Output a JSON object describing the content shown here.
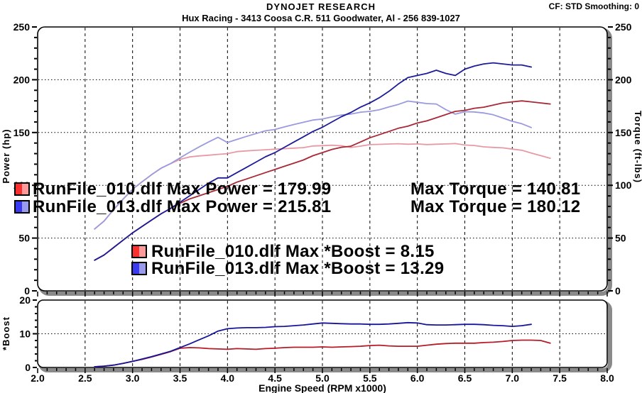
{
  "header": {
    "title": "DYNOJET RESEARCH",
    "subtitle": "Hux Racing - 3413 Coosa C.R. 511 Goodwater, Al - 256 839-1027",
    "status_right": "CF: STD  Smoothing: 0"
  },
  "main_chart": {
    "left_axis_label": "Power (hp)",
    "right_axis_label": "Torque (ft-lbs)",
    "y_tick_labels": [
      "0",
      "50",
      "100",
      "150",
      "200",
      "250"
    ],
    "legend_rows": [
      {
        "swatch_left": "#f83030",
        "swatch_right": "#fb9a9a",
        "left_text": "RunFile_010.dlf Max Power = 179.99",
        "right_text": "Max Torque = 140.81"
      },
      {
        "swatch_left": "#3a3af0",
        "swatch_right": "#9a9aec",
        "left_text": "RunFile_013.dlf Max Power = 215.81",
        "right_text": "Max Torque = 180.12"
      }
    ]
  },
  "boost_chart": {
    "axis_label": "*Boost",
    "y_tick_labels": [
      "0",
      "10",
      "20"
    ],
    "legend_rows": [
      {
        "swatch_left": "#f83030",
        "swatch_right": "#fb9a9a",
        "text": "RunFile_010.dlf Max *Boost = 8.15"
      },
      {
        "swatch_left": "#3a3af0",
        "swatch_right": "#9a9aec",
        "text": "RunFile_013.dlf Max *Boost = 13.29"
      }
    ]
  },
  "x_axis": {
    "label": "Engine Speed (RPM x1000)",
    "ticks": [
      "2.0",
      "2.5",
      "3.0",
      "3.5",
      "4.0",
      "4.5",
      "5.0",
      "5.5",
      "6.0",
      "6.5",
      "7.0",
      "7.5",
      "8.0"
    ]
  },
  "chart_data": [
    {
      "type": "line",
      "title": "Power and Torque vs Engine Speed",
      "xlabel": "Engine Speed (RPM x1000)",
      "ylabel_left": "Power (hp)",
      "ylabel_right": "Torque (ft-lbs)",
      "xlim": [
        2.0,
        8.0
      ],
      "ylim": [
        0,
        250
      ],
      "grid": true,
      "series": [
        {
          "id": "torque-010",
          "name": "RunFile_010.dlf Torque (ft-lbs)",
          "role": "torque",
          "color": "#e89aa4",
          "max": 140.81,
          "x": [
            2.6,
            2.7,
            2.8,
            2.9,
            3.0,
            3.1,
            3.2,
            3.3,
            3.4,
            3.5,
            3.6,
            3.7,
            3.8,
            3.9,
            4.0,
            4.1,
            4.2,
            4.3,
            4.4,
            4.5,
            4.6,
            4.7,
            4.8,
            4.9,
            5.0,
            5.1,
            5.2,
            5.3,
            5.4,
            5.5,
            5.6,
            5.7,
            5.8,
            5.9,
            6.0,
            6.1,
            6.2,
            6.3,
            6.4,
            6.5,
            6.6,
            6.7,
            6.8,
            6.9,
            7.0,
            7.1,
            7.2,
            7.3,
            7.4
          ],
          "y": [
            58.6,
            66.1,
            76.9,
            86.9,
            96.3,
            103.3,
            110.0,
            116.2,
            120.5,
            124.5,
            126.9,
            127.8,
            128.5,
            129.3,
            130.0,
            131.9,
            132.6,
            133.1,
            133.7,
            134.2,
            134.7,
            135.2,
            135.7,
            137.2,
            137.6,
            138.0,
            137.4,
            135.8,
            137.1,
            138.5,
            138.8,
            139.1,
            139.4,
            138.9,
            139.2,
            138.6,
            138.9,
            139.2,
            139.5,
            138.2,
            137.7,
            136.4,
            135.9,
            135.5,
            134.3,
            133.2,
            130.6,
            128.1,
            125.6
          ]
        },
        {
          "id": "torque-013",
          "name": "RunFile_013.dlf Torque (ft-lbs)",
          "role": "torque",
          "color": "#9a9adf",
          "max": 180.12,
          "x": [
            2.6,
            2.7,
            2.8,
            2.9,
            3.0,
            3.1,
            3.2,
            3.3,
            3.4,
            3.5,
            3.6,
            3.7,
            3.8,
            3.9,
            4.0,
            4.1,
            4.2,
            4.3,
            4.4,
            4.5,
            4.6,
            4.7,
            4.8,
            4.9,
            5.0,
            5.1,
            5.2,
            5.3,
            5.4,
            5.5,
            5.6,
            5.7,
            5.8,
            5.9,
            6.0,
            6.1,
            6.2,
            6.3,
            6.4,
            6.5,
            6.6,
            6.7,
            6.8,
            6.9,
            7.0,
            7.1,
            7.2
          ],
          "y": [
            58.6,
            66.1,
            76.9,
            86.9,
            96.3,
            103.3,
            110.0,
            116.2,
            120.5,
            126.0,
            131.3,
            136.3,
            141.0,
            145.4,
            140.5,
            143.5,
            146.3,
            149.0,
            151.6,
            152.9,
            155.3,
            157.6,
            159.7,
            161.8,
            162.8,
            164.8,
            166.6,
            167.5,
            169.2,
            170.0,
            171.6,
            174.2,
            176.6,
            179.8,
            178.6,
            177.4,
            177.0,
            171.7,
            167.4,
            169.7,
            169.5,
            168.5,
            166.8,
            163.7,
            160.6,
            158.3,
            154.7
          ]
        },
        {
          "id": "power-010",
          "name": "RunFile_010.dlf Power (hp)",
          "role": "power",
          "color": "#a82836",
          "max": 179.99,
          "x": [
            2.6,
            2.7,
            2.8,
            2.9,
            3.0,
            3.1,
            3.2,
            3.3,
            3.4,
            3.5,
            3.6,
            3.7,
            3.8,
            3.9,
            4.0,
            4.1,
            4.2,
            4.3,
            4.4,
            4.5,
            4.6,
            4.7,
            4.8,
            4.9,
            5.0,
            5.1,
            5.2,
            5.3,
            5.4,
            5.5,
            5.6,
            5.7,
            5.8,
            5.9,
            6.0,
            6.1,
            6.2,
            6.3,
            6.4,
            6.5,
            6.6,
            6.7,
            6.8,
            6.9,
            7.0,
            7.1,
            7.2,
            7.3,
            7.4
          ],
          "y": [
            29,
            34,
            41,
            48,
            55,
            61,
            67,
            73,
            78,
            83,
            87,
            90,
            93,
            96,
            99,
            103,
            106,
            109,
            112,
            115,
            118,
            121,
            124,
            128,
            131,
            134,
            136,
            137,
            141,
            145,
            148,
            151,
            154,
            156,
            159,
            161,
            164,
            167,
            170,
            171,
            173,
            174,
            176,
            178,
            179,
            180,
            179,
            178,
            177
          ]
        },
        {
          "id": "power-013",
          "name": "RunFile_013.dlf Power (hp)",
          "role": "power",
          "color": "#1c1c99",
          "max": 215.81,
          "x": [
            2.6,
            2.7,
            2.8,
            2.9,
            3.0,
            3.1,
            3.2,
            3.3,
            3.4,
            3.5,
            3.6,
            3.7,
            3.8,
            3.9,
            4.0,
            4.1,
            4.2,
            4.3,
            4.4,
            4.5,
            4.6,
            4.7,
            4.8,
            4.9,
            5.0,
            5.1,
            5.2,
            5.3,
            5.4,
            5.5,
            5.6,
            5.7,
            5.8,
            5.9,
            6.0,
            6.1,
            6.2,
            6.3,
            6.4,
            6.5,
            6.6,
            6.7,
            6.8,
            6.9,
            7.0,
            7.1,
            7.2
          ],
          "y": [
            29,
            34,
            41,
            48,
            55,
            61,
            67,
            73,
            78,
            84,
            90,
            96,
            102,
            107,
            107,
            112,
            117,
            122,
            127,
            131,
            136,
            141,
            146,
            151,
            155,
            160,
            165,
            169,
            174,
            178,
            183,
            189,
            196,
            202,
            204,
            206,
            209,
            206,
            204,
            210,
            213,
            215,
            216,
            215,
            214,
            214,
            212
          ]
        }
      ]
    },
    {
      "type": "line",
      "title": "Boost vs Engine Speed",
      "xlabel": "Engine Speed (RPM x1000)",
      "ylabel": "*Boost",
      "xlim": [
        2.0,
        8.0
      ],
      "ylim": [
        0,
        20
      ],
      "grid": true,
      "series": [
        {
          "id": "boost-010",
          "name": "RunFile_010.dlf *Boost",
          "role": "boost",
          "color": "#b51c28",
          "max": 8.15,
          "x": [
            2.6,
            2.7,
            2.8,
            2.9,
            3.0,
            3.1,
            3.2,
            3.3,
            3.4,
            3.5,
            3.6,
            3.7,
            3.8,
            3.9,
            4.0,
            4.1,
            4.2,
            4.3,
            4.4,
            4.5,
            4.6,
            4.7,
            4.8,
            4.9,
            5.0,
            5.1,
            5.2,
            5.3,
            5.4,
            5.5,
            5.6,
            5.7,
            5.8,
            5.9,
            6.0,
            6.1,
            6.2,
            6.3,
            6.4,
            6.5,
            6.6,
            6.7,
            6.8,
            6.9,
            7.0,
            7.1,
            7.2,
            7.3,
            7.4
          ],
          "y": [
            0.2,
            0.4,
            0.7,
            1.2,
            1.8,
            2.4,
            3.1,
            3.9,
            4.7,
            5.7,
            5.9,
            5.8,
            5.6,
            5.5,
            5.4,
            5.6,
            5.5,
            5.4,
            5.6,
            5.7,
            5.9,
            6.0,
            6.0,
            6.0,
            6.1,
            6.0,
            6.1,
            6.2,
            6.3,
            6.5,
            6.6,
            6.4,
            6.3,
            6.3,
            6.3,
            6.6,
            6.9,
            7.1,
            7.2,
            7.2,
            7.2,
            7.4,
            7.5,
            7.7,
            8.0,
            8.1,
            8.1,
            8.0,
            7.2
          ]
        },
        {
          "id": "boost-013",
          "name": "RunFile_013.dlf *Boost",
          "role": "boost",
          "color": "#16169b",
          "max": 13.29,
          "x": [
            2.6,
            2.7,
            2.8,
            2.9,
            3.0,
            3.1,
            3.2,
            3.3,
            3.4,
            3.5,
            3.6,
            3.7,
            3.8,
            3.9,
            4.0,
            4.1,
            4.2,
            4.3,
            4.4,
            4.5,
            4.6,
            4.7,
            4.8,
            4.9,
            5.0,
            5.1,
            5.2,
            5.3,
            5.4,
            5.5,
            5.6,
            5.7,
            5.8,
            5.9,
            6.0,
            6.1,
            6.2,
            6.3,
            6.4,
            6.5,
            6.6,
            6.7,
            6.8,
            6.9,
            7.0,
            7.1,
            7.2
          ],
          "y": [
            0.2,
            0.4,
            0.7,
            1.2,
            1.8,
            2.5,
            3.2,
            4.0,
            4.8,
            5.9,
            7.0,
            8.2,
            9.4,
            10.8,
            11.5,
            11.7,
            11.8,
            11.8,
            11.9,
            12.1,
            12.2,
            12.4,
            12.6,
            12.9,
            13.2,
            13.1,
            13.0,
            12.9,
            12.9,
            12.8,
            12.8,
            12.9,
            13.1,
            13.3,
            13.2,
            12.7,
            12.6,
            12.6,
            12.7,
            12.8,
            12.8,
            12.7,
            12.5,
            12.4,
            12.2,
            12.4,
            12.8
          ]
        }
      ]
    }
  ]
}
